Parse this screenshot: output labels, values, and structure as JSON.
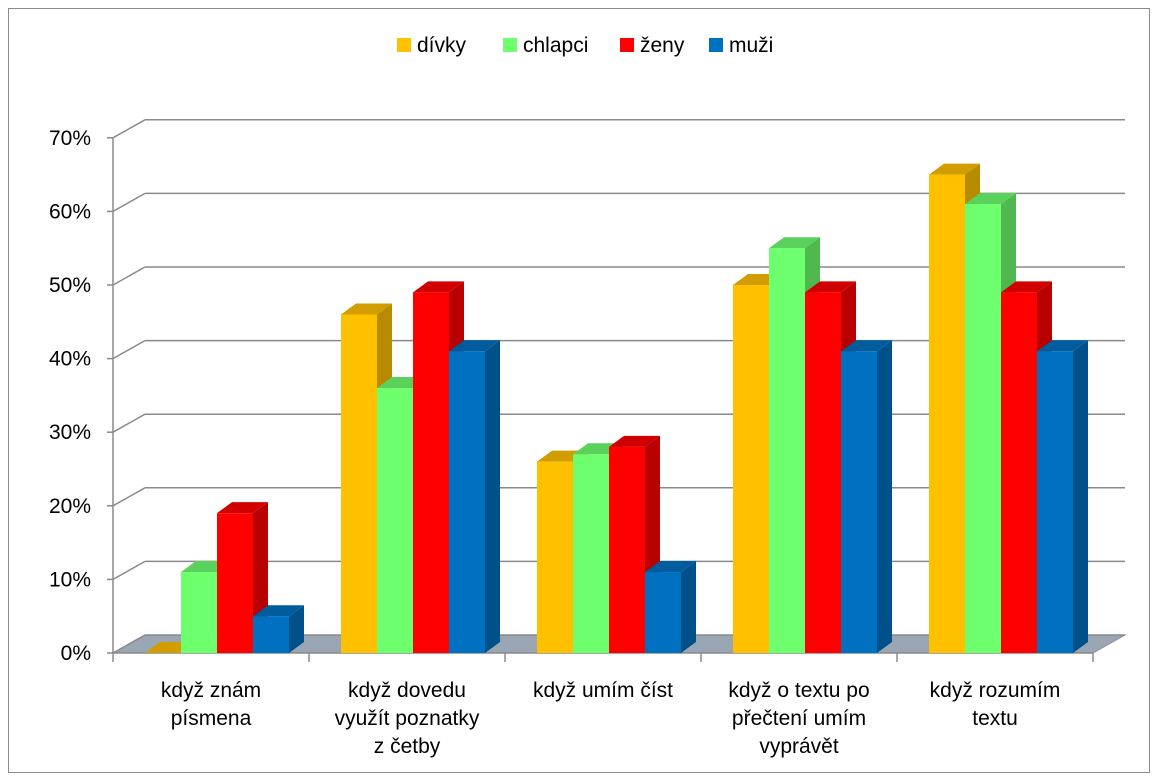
{
  "chart_data": {
    "type": "bar",
    "categories": [
      [
        "když znám",
        "písmena"
      ],
      [
        "když dovedu",
        "využít poznatky",
        "z četby"
      ],
      [
        "když umím číst"
      ],
      [
        "když o textu po",
        "přečtení umím",
        "vyprávět"
      ],
      [
        "když rozumím",
        "textu"
      ]
    ],
    "series": [
      {
        "name": "dívky",
        "color": "#FFC000",
        "values": [
          0,
          46,
          26,
          50,
          65
        ]
      },
      {
        "name": "chlapci",
        "color": "#6EFF6E",
        "values": [
          11,
          36,
          27,
          55,
          61
        ]
      },
      {
        "name": "ženy",
        "color": "#FF0000",
        "values": [
          19,
          49,
          28,
          49,
          49
        ]
      },
      {
        "name": "muži",
        "color": "#0070C0",
        "values": [
          5,
          41,
          11,
          41,
          41
        ]
      }
    ],
    "yticks": [
      "0%",
      "10%",
      "20%",
      "30%",
      "40%",
      "50%",
      "60%",
      "70%"
    ],
    "ylim": [
      0,
      70
    ],
    "legend_position": "top",
    "grid": true,
    "style": "3d-clustered-column"
  }
}
